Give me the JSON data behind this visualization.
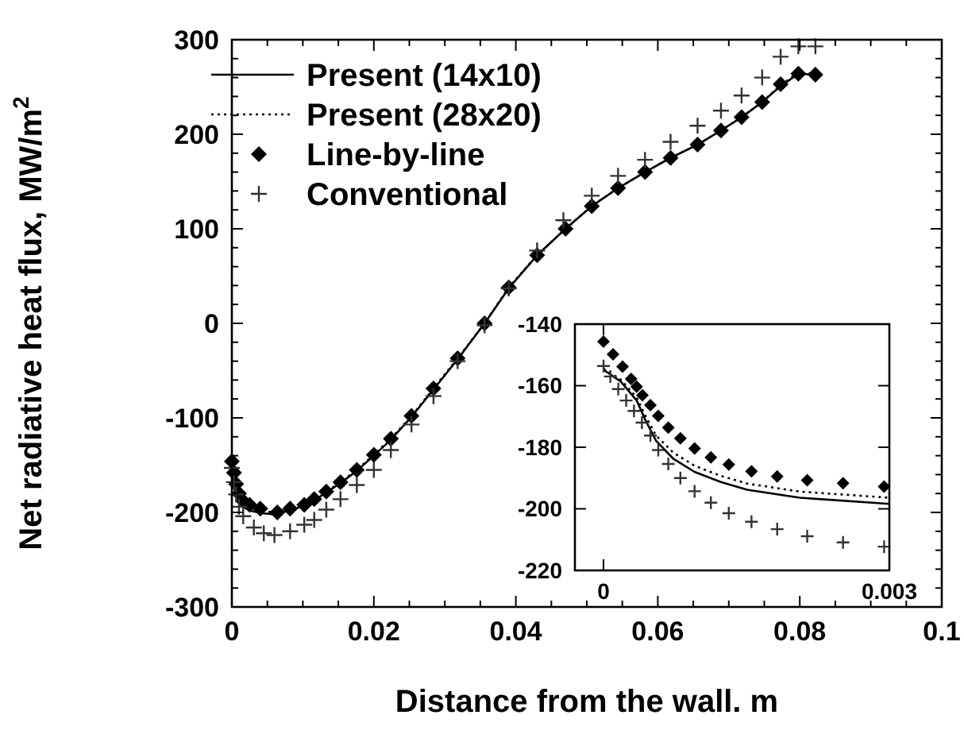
{
  "chart_data": [
    {
      "type": "line",
      "xlabel": "Distance from the wall. m",
      "ylabel": "Net radiative heat flux, MW/m$^{2}$",
      "xlim": [
        0,
        0.1
      ],
      "ylim": [
        -300,
        300
      ],
      "xticks": [
        0,
        {
          "value": 0.005,
          "label": null
        },
        {
          "value": 0.01,
          "label": null
        },
        {
          "value": 0.015,
          "label": null
        },
        0.02,
        {
          "value": 0.025,
          "label": null
        },
        {
          "value": 0.03,
          "label": null
        },
        {
          "value": 0.035,
          "label": null
        },
        0.04,
        {
          "value": 0.045,
          "label": null
        },
        {
          "value": 0.05,
          "label": null
        },
        {
          "value": 0.055,
          "label": null
        },
        0.06,
        {
          "value": 0.065,
          "label": null
        },
        {
          "value": 0.07,
          "label": null
        },
        {
          "value": 0.075,
          "label": null
        },
        0.08,
        {
          "value": 0.085,
          "label": null
        },
        {
          "value": 0.09,
          "label": null
        },
        {
          "value": 0.095,
          "label": null
        },
        0.1
      ],
      "yticks": [
        -300,
        {
          "value": -280,
          "label": null
        },
        {
          "value": -260,
          "label": null
        },
        {
          "value": -240,
          "label": null
        },
        {
          "value": -220,
          "label": null
        },
        -200,
        {
          "value": -180,
          "label": null
        },
        {
          "value": -160,
          "label": null
        },
        {
          "value": -140,
          "label": null
        },
        {
          "value": -120,
          "label": null
        },
        -100,
        {
          "value": -80,
          "label": null
        },
        {
          "value": -60,
          "label": null
        },
        {
          "value": -40,
          "label": null
        },
        {
          "value": -20,
          "label": null
        },
        0,
        {
          "value": 20,
          "label": null
        },
        {
          "value": 40,
          "label": null
        },
        {
          "value": 60,
          "label": null
        },
        {
          "value": 80,
          "label": null
        },
        100,
        {
          "value": 120,
          "label": null
        },
        {
          "value": 140,
          "label": null
        },
        {
          "value": 160,
          "label": null
        },
        {
          "value": 180,
          "label": null
        },
        200,
        {
          "value": 220,
          "label": null
        },
        {
          "value": 240,
          "label": null
        },
        {
          "value": 260,
          "label": null
        },
        {
          "value": 280,
          "label": null
        },
        300
      ],
      "legend": "top left",
      "grid": false,
      "series": [
        {
          "name": "Present (14x10)",
          "line_style": "solid",
          "marker": "none",
          "color": "#000000",
          "x": [
            0,
            0.0005,
            0.001,
            0.002,
            0.003,
            0.0045,
            0.006,
            0.008,
            0.0102,
            0.0116,
            0.0133,
            0.0153,
            0.0176,
            0.02,
            0.0224,
            0.0253,
            0.0284,
            0.0318,
            0.0356,
            0.039,
            0.043,
            0.047,
            0.0507,
            0.0544,
            0.0582,
            0.0618,
            0.0656,
            0.0689,
            0.0718,
            0.0747,
            0.0773,
            0.0798,
            0.0822
          ],
          "values": [
            -155,
            -172,
            -188,
            -196,
            -199,
            -201,
            -202,
            -198,
            -193,
            -187,
            -179,
            -169,
            -156,
            -140,
            -123,
            -99,
            -70,
            -38,
            0,
            37,
            72,
            100,
            124,
            143,
            160,
            175,
            189,
            204,
            218,
            234,
            251,
            264,
            263
          ]
        },
        {
          "name": "Present (28x20)",
          "line_style": "dotted",
          "marker": "none",
          "color": "#000000",
          "x": [
            0,
            0.0005,
            0.001,
            0.002,
            0.003,
            0.0045,
            0.006,
            0.008,
            0.0102,
            0.0116,
            0.0133,
            0.0153,
            0.0176,
            0.02,
            0.0224,
            0.0253,
            0.0284,
            0.0318,
            0.0356,
            0.039,
            0.043,
            0.047,
            0.0507,
            0.0544,
            0.0582,
            0.0618,
            0.0656,
            0.0689,
            0.0718,
            0.0747,
            0.0773,
            0.0798,
            0.0822
          ],
          "values": [
            -155,
            -170,
            -186,
            -194,
            -197,
            -199,
            -200,
            -197,
            -192,
            -186,
            -178,
            -168,
            -155,
            -139,
            -122,
            -98,
            -69,
            -37,
            0,
            38,
            72,
            100,
            124,
            143,
            160,
            175,
            189,
            204,
            218,
            234,
            252,
            265,
            264
          ]
        },
        {
          "name": "Line-by-line",
          "type": "scatter",
          "marker": "diamond",
          "color": "#000000",
          "x": [
            0,
            0.0003,
            0.0006,
            0.001,
            0.0016,
            0.0025,
            0.004,
            0.0064,
            0.0082,
            0.0102,
            0.0116,
            0.0133,
            0.0153,
            0.0176,
            0.02,
            0.0224,
            0.0253,
            0.0284,
            0.0318,
            0.0356,
            0.039,
            0.043,
            0.047,
            0.0507,
            0.0544,
            0.0582,
            0.0618,
            0.0656,
            0.0689,
            0.0718,
            0.0747,
            0.0773,
            0.0798,
            0.0822
          ],
          "values": [
            -146,
            -158,
            -170,
            -180,
            -188,
            -192,
            -196,
            -200,
            -196,
            -192,
            -186,
            -178,
            -168,
            -155,
            -139,
            -122,
            -98,
            -69,
            -37,
            0,
            38,
            72,
            100,
            124,
            143,
            160,
            175,
            189,
            204,
            218,
            234,
            253,
            264,
            263
          ]
        },
        {
          "name": "Conventional",
          "type": "scatter",
          "marker": "cross",
          "color": "#333333",
          "x": [
            0,
            0.0003,
            0.0006,
            0.001,
            0.0016,
            0.0031,
            0.0045,
            0.006,
            0.0082,
            0.0102,
            0.0116,
            0.0133,
            0.0153,
            0.0176,
            0.02,
            0.0224,
            0.0253,
            0.0284,
            0.0318,
            0.0356,
            0.039,
            0.043,
            0.0467,
            0.0507,
            0.0544,
            0.0582,
            0.0618,
            0.0656,
            0.0689,
            0.0718,
            0.0747,
            0.0773,
            0.0798,
            0.0822
          ],
          "values": [
            -153,
            -168,
            -181,
            -194,
            -204,
            -216,
            -222,
            -224,
            -220,
            -213,
            -208,
            -197,
            -186,
            -171,
            -155,
            -134,
            -107,
            -77,
            -40,
            -2,
            37,
            77,
            109,
            135,
            156,
            173,
            192,
            209,
            225,
            241,
            260,
            282,
            293,
            293
          ]
        }
      ]
    },
    {
      "type": "line",
      "xlim": [
        -0.0003,
        0.003
      ],
      "ylim": [
        -220,
        -140
      ],
      "xticks": [
        0,
        0.003
      ],
      "yticks": [
        -220,
        -200,
        -180,
        -160,
        -140
      ],
      "grid": false,
      "legend": false,
      "series": [
        {
          "line_style": "solid",
          "marker": "none",
          "color": "#000000",
          "x": [
            0,
            0.00018,
            0.000348,
            0.00044,
            0.000552,
            0.000735,
            0.000956,
            0.001232,
            0.001508,
            0.00206,
            0.003
          ],
          "values": [
            -154.8,
            -158.6,
            -164.8,
            -171.2,
            -177.9,
            -183.8,
            -188,
            -191.3,
            -193.8,
            -196.4,
            -198.4
          ]
        },
        {
          "line_style": "dotted",
          "marker": "none",
          "color": "#000000",
          "x": [
            0,
            0.00018,
            0.000348,
            0.00044,
            0.000552,
            0.000735,
            0.000956,
            0.001232,
            0.001508,
            0.00206,
            0.003
          ],
          "values": [
            -154.5,
            -158,
            -163.8,
            -169.8,
            -176.2,
            -181.8,
            -186,
            -189.3,
            -191.8,
            -194.4,
            -196.4
          ]
        },
        {
          "type": "scatter",
          "marker": "diamond",
          "color": "#000000",
          "x": [
            0,
            0.0001,
            0.0002,
            0.00029,
            0.000348,
            0.000409,
            0.000492,
            0.000575,
            0.00068,
            0.000807,
            0.000956,
            0.001127,
            0.001315,
            0.001553,
            0.001823,
            0.002138,
            0.002514,
            0.002945
          ],
          "values": [
            -145.7,
            -149.8,
            -153.8,
            -157.8,
            -160.3,
            -163.1,
            -166.3,
            -169.8,
            -173.6,
            -177.1,
            -180.4,
            -183.3,
            -185.6,
            -187.8,
            -189.5,
            -190.7,
            -191.7,
            -192.8
          ]
        },
        {
          "type": "scatter",
          "marker": "cross",
          "color": "#333333",
          "x": [
            0,
            7.18e-05,
            0.000155,
            0.000238,
            0.00032,
            0.000403,
            0.000492,
            0.000575,
            0.00068,
            0.000807,
            0.000956,
            0.001127,
            0.001315,
            0.001553,
            0.001823,
            0.002138,
            0.002514,
            0.002945
          ],
          "values": [
            -153.6,
            -157,
            -161.1,
            -164.8,
            -168.2,
            -172,
            -176.2,
            -180.9,
            -185.4,
            -190,
            -194.3,
            -198,
            -201.4,
            -204.2,
            -206.6,
            -208.9,
            -210.9,
            -212.3
          ]
        }
      ]
    }
  ]
}
